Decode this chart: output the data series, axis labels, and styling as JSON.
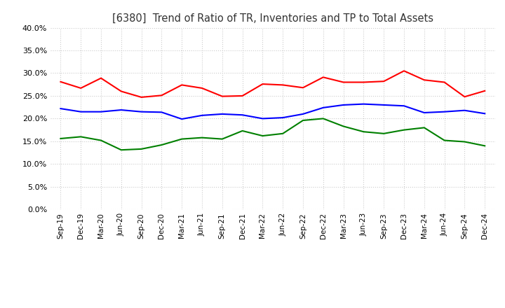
{
  "title": "[6380]  Trend of Ratio of TR, Inventories and TP to Total Assets",
  "x_labels": [
    "Sep-19",
    "Dec-19",
    "Mar-20",
    "Jun-20",
    "Sep-20",
    "Dec-20",
    "Mar-21",
    "Jun-21",
    "Sep-21",
    "Dec-21",
    "Mar-22",
    "Jun-22",
    "Sep-22",
    "Dec-22",
    "Mar-23",
    "Jun-23",
    "Sep-23",
    "Dec-23",
    "Mar-24",
    "Jun-24",
    "Sep-24",
    "Dec-24"
  ],
  "trade_receivables": [
    0.281,
    0.267,
    0.289,
    0.26,
    0.247,
    0.251,
    0.274,
    0.267,
    0.249,
    0.25,
    0.276,
    0.274,
    0.268,
    0.291,
    0.28,
    0.28,
    0.282,
    0.305,
    0.285,
    0.28,
    0.248,
    0.261
  ],
  "inventories": [
    0.222,
    0.215,
    0.215,
    0.219,
    0.215,
    0.214,
    0.199,
    0.207,
    0.21,
    0.208,
    0.2,
    0.202,
    0.21,
    0.224,
    0.23,
    0.232,
    0.23,
    0.228,
    0.213,
    0.215,
    0.218,
    0.211
  ],
  "trade_payables": [
    0.156,
    0.16,
    0.152,
    0.131,
    0.133,
    0.142,
    0.155,
    0.158,
    0.155,
    0.173,
    0.162,
    0.167,
    0.196,
    0.2,
    0.183,
    0.171,
    0.167,
    0.175,
    0.18,
    0.152,
    0.149,
    0.14
  ],
  "tr_color": "#ff0000",
  "inv_color": "#0000ff",
  "tp_color": "#008000",
  "ylim": [
    0.0,
    0.4
  ],
  "yticks": [
    0.0,
    0.05,
    0.1,
    0.15,
    0.2,
    0.25,
    0.3,
    0.35,
    0.4
  ],
  "background_color": "#ffffff",
  "grid_color": "#cccccc"
}
